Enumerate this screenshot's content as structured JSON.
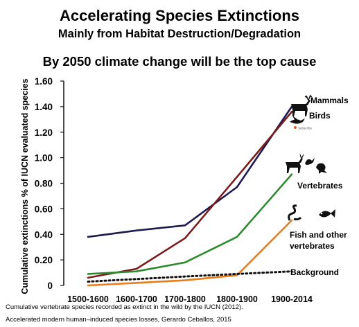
{
  "chart_data": {
    "type": "line",
    "title": "Accelerating Species Extinctions",
    "subtitle": "Mainly from Habitat Destruction/Degradation",
    "headline": "By 2050 climate change will be the top cause",
    "ylabel": "Cumulative extinctions % of IUCN evaluated species",
    "xlabel": "",
    "categories": [
      "1500-1600",
      "1600-1700",
      "1700-1800",
      "1800-1900",
      "1900-2014"
    ],
    "ylim": [
      0,
      1.6
    ],
    "yticks": [
      "0",
      "0.20",
      "0.40",
      "0.60",
      "0.80",
      "1.00",
      "1.20",
      "1.40",
      "1.60"
    ],
    "grid": false,
    "series": [
      {
        "name": "Mammals",
        "color": "#1c1a4e",
        "style": "solid",
        "values": [
          0.38,
          0.43,
          0.47,
          0.77,
          1.4
        ]
      },
      {
        "name": "Birds",
        "color": "#7a1a1a",
        "style": "solid",
        "values": [
          0.06,
          0.13,
          0.37,
          0.85,
          1.36
        ]
      },
      {
        "name": "Vertebrates",
        "color": "#2e8a2e",
        "style": "solid",
        "values": [
          0.09,
          0.11,
          0.18,
          0.38,
          0.87
        ]
      },
      {
        "name": "Fish and other vertebrates",
        "color": "#e87c1a",
        "style": "solid",
        "values": [
          0.0,
          0.02,
          0.04,
          0.08,
          0.51
        ]
      },
      {
        "name": "Background",
        "color": "#111111",
        "style": "dotted",
        "values": [
          0.03,
          0.05,
          0.07,
          0.09,
          0.11
        ]
      }
    ],
    "labels": {
      "mammals": "Mammals",
      "birds": "Birds",
      "vertebrates": "Vertebrates",
      "fish_line1": "Fish and other",
      "fish_line2": "vertebrates",
      "background": "Background"
    },
    "footnotes": [
      "Cumulative vertebrate species recorded as extinct in the wild by the IUCN (2012).",
      "Accelerated modern human–induced species losses, Gerardo Ceballos, 2015"
    ]
  },
  "icons": [
    "deer-icon",
    "bird-icon",
    "subscribe-badge",
    "animals-icon",
    "snake-icon",
    "fish-icon"
  ],
  "badge_text": "Subscribe"
}
